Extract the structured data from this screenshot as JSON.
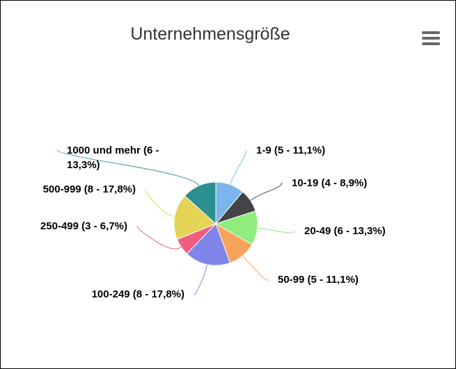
{
  "chart_data": {
    "type": "pie",
    "title": "Unternehmensgröße",
    "values": [
      5,
      4,
      6,
      5,
      8,
      3,
      8,
      6
    ],
    "value_labels": [
      "1-9 (5 - 11,1%)",
      "10-19 (4 - 8,9%)",
      "20-49 (6 - 13,3%)",
      "50-99 (5 - 11,1%)",
      "100-249 (8 - 17,8%)",
      "250-499 (3 - 6,7%)",
      "500-999 (8 - 17,8%)",
      "1000 und mehr (6 - 13,3%)"
    ],
    "colors": [
      "#7cb5ec",
      "#434348",
      "#90ed7d",
      "#f7a35c",
      "#8085e9",
      "#f15c80",
      "#e4d354",
      "#2b908f"
    ]
  }
}
